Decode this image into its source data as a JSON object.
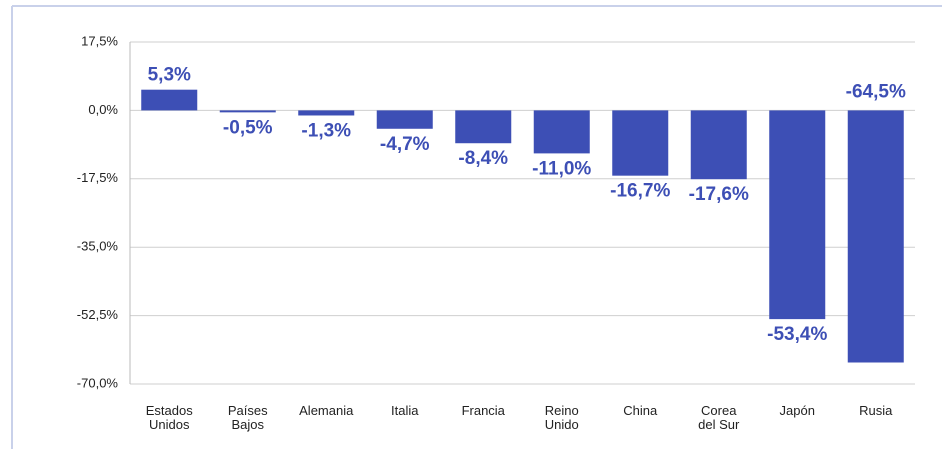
{
  "chart_data": {
    "type": "bar",
    "categories": [
      "Estados\nUnidos",
      "Países\nBajos",
      "Alemania",
      "Italia",
      "Francia",
      "Reino\nUnido",
      "China",
      "Corea\ndel Sur",
      "Japón",
      "Rusia"
    ],
    "values": [
      5.3,
      -0.5,
      -1.3,
      -4.7,
      -8.4,
      -11.0,
      -16.7,
      -17.6,
      -53.4,
      -64.5
    ],
    "value_labels": [
      "5,3%",
      "-0,5%",
      "-1,3%",
      "-4,7%",
      "-8,4%",
      "-11,0%",
      "-16,7%",
      "-17,6%",
      "-53,4%",
      "-64,5%"
    ],
    "color": "#3d4fb5",
    "ylim": [
      -70,
      17.5
    ],
    "yticks": [
      {
        "value": 17.5,
        "label": "17,5%"
      },
      {
        "value": 0,
        "label": "0,0%"
      },
      {
        "value": -17.5,
        "label": "-17,5%"
      },
      {
        "value": -35,
        "label": "-35,0%"
      },
      {
        "value": -52.5,
        "label": "-52,5%"
      },
      {
        "value": -70,
        "label": "-70,0%"
      }
    ],
    "grid": true
  }
}
